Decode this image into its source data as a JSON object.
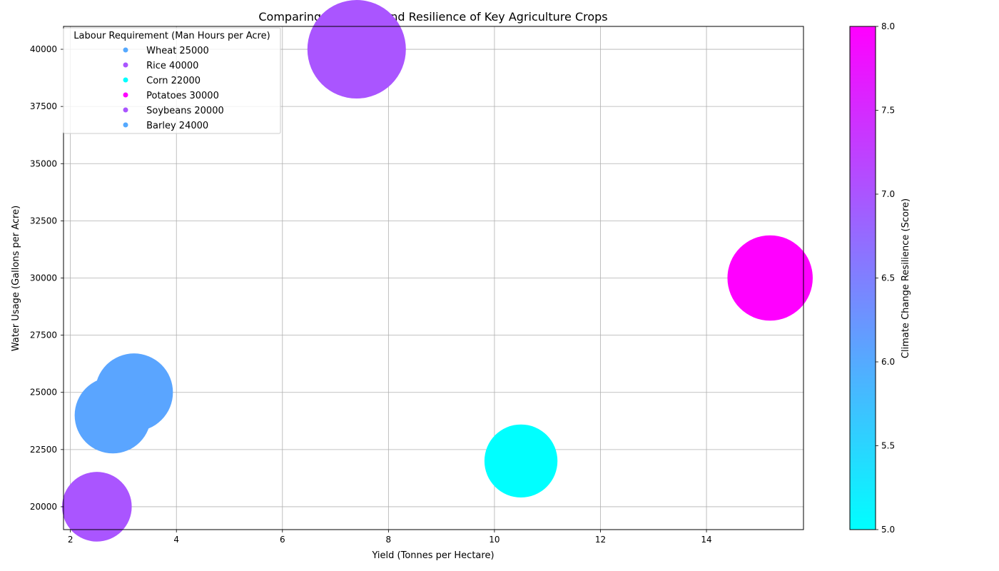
{
  "chart_data": {
    "type": "scatter",
    "title": "Comparing Efficiency and Resilience of Key Agriculture Crops",
    "xlabel": "Yield (Tonnes per Hectare)",
    "ylabel": "Water Usage (Gallons per Acre)",
    "xlim": [
      1.87,
      15.83
    ],
    "ylim": [
      19000,
      41000
    ],
    "xticks": [
      2,
      4,
      6,
      8,
      10,
      12,
      14
    ],
    "yticks": [
      20000,
      22500,
      25000,
      27500,
      30000,
      32500,
      35000,
      37500,
      40000
    ],
    "xtick_labels": [
      "2",
      "4",
      "6",
      "8",
      "10",
      "12",
      "14"
    ],
    "ytick_labels": [
      "20000",
      "22500",
      "25000",
      "27500",
      "30000",
      "32500",
      "35000",
      "37500",
      "40000"
    ],
    "grid": true,
    "legend": {
      "title": "Labour Requirement (Man Hours per Acre)",
      "placement": "top-left",
      "entries": [
        {
          "label": " Wheat 25000",
          "color": "#55a9ff"
        },
        {
          "label": " Rice 40000",
          "color": "#aa55ff"
        },
        {
          "label": " Corn 22000",
          "color": "#00ffff"
        },
        {
          "label": " Potatoes 30000",
          "color": "#ff00ff"
        },
        {
          "label": " Soybeans 20000",
          "color": "#aa55ff"
        },
        {
          "label": " Barley 24000",
          "color": "#55a9ff"
        }
      ]
    },
    "points": [
      {
        "yield": 3.2,
        "water": 25000,
        "resilience": 6,
        "labour": 25000,
        "color": "#5aa5ff"
      },
      {
        "yield": 7.4,
        "water": 40000,
        "resilience": 7,
        "labour": 40000,
        "color": "#aa55ff"
      },
      {
        "yield": 10.5,
        "water": 22000,
        "resilience": 5,
        "labour": 22000,
        "color": "#00ffff"
      },
      {
        "yield": 15.2,
        "water": 30000,
        "resilience": 8,
        "labour": 30000,
        "color": "#ff00ff"
      },
      {
        "yield": 2.5,
        "water": 20000,
        "resilience": 7,
        "labour": 20000,
        "color": "#aa55ff"
      },
      {
        "yield": 2.8,
        "water": 24000,
        "resilience": 6,
        "labour": 24000,
        "color": "#5aa5ff"
      }
    ],
    "colorbar": {
      "label": "Climate Change Resilience (Score)",
      "range": [
        5.0,
        8.0
      ],
      "ticks": [
        5.0,
        5.5,
        6.0,
        6.5,
        7.0,
        7.5,
        8.0
      ],
      "tick_labels": [
        "5.0",
        "5.5",
        "6.0",
        "6.5",
        "7.0",
        "7.5",
        "8.0"
      ],
      "colormap": "cool",
      "color_low": "#00ffff",
      "color_high": "#ff00ff"
    }
  }
}
